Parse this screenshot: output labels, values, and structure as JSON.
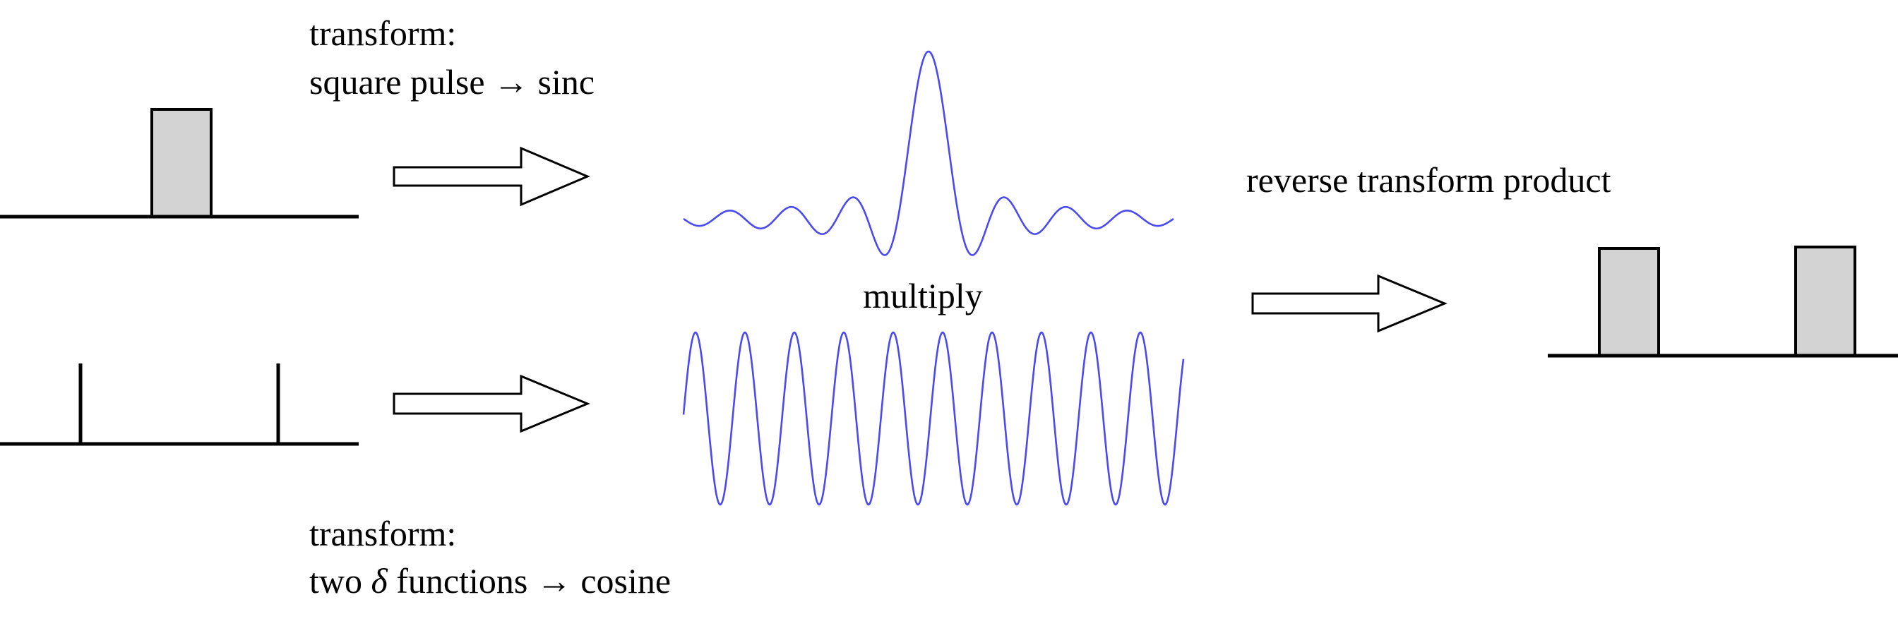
{
  "labels": {
    "top_line1": "transform:",
    "top_line2": "square pulse → sinc",
    "bottom_line1": "transform:",
    "bottom_line2_pre": "two ",
    "bottom_line2_delta": "δ",
    "bottom_line2_post": " functions → cosine",
    "multiply": "multiply",
    "reverse": "reverse transform product"
  },
  "colors": {
    "wave": "#4a4aef",
    "pulse_fill": "#d3d3d3",
    "line": "#000000"
  },
  "diagram": {
    "sinc_wave": {
      "function": "sinc",
      "zero_crossings_each_side": 8
    },
    "cosine_wave": {
      "function": "cosine",
      "peaks": 10
    },
    "inputs": [
      "square pulse",
      "two δ functions"
    ],
    "output": "two square pulses"
  }
}
